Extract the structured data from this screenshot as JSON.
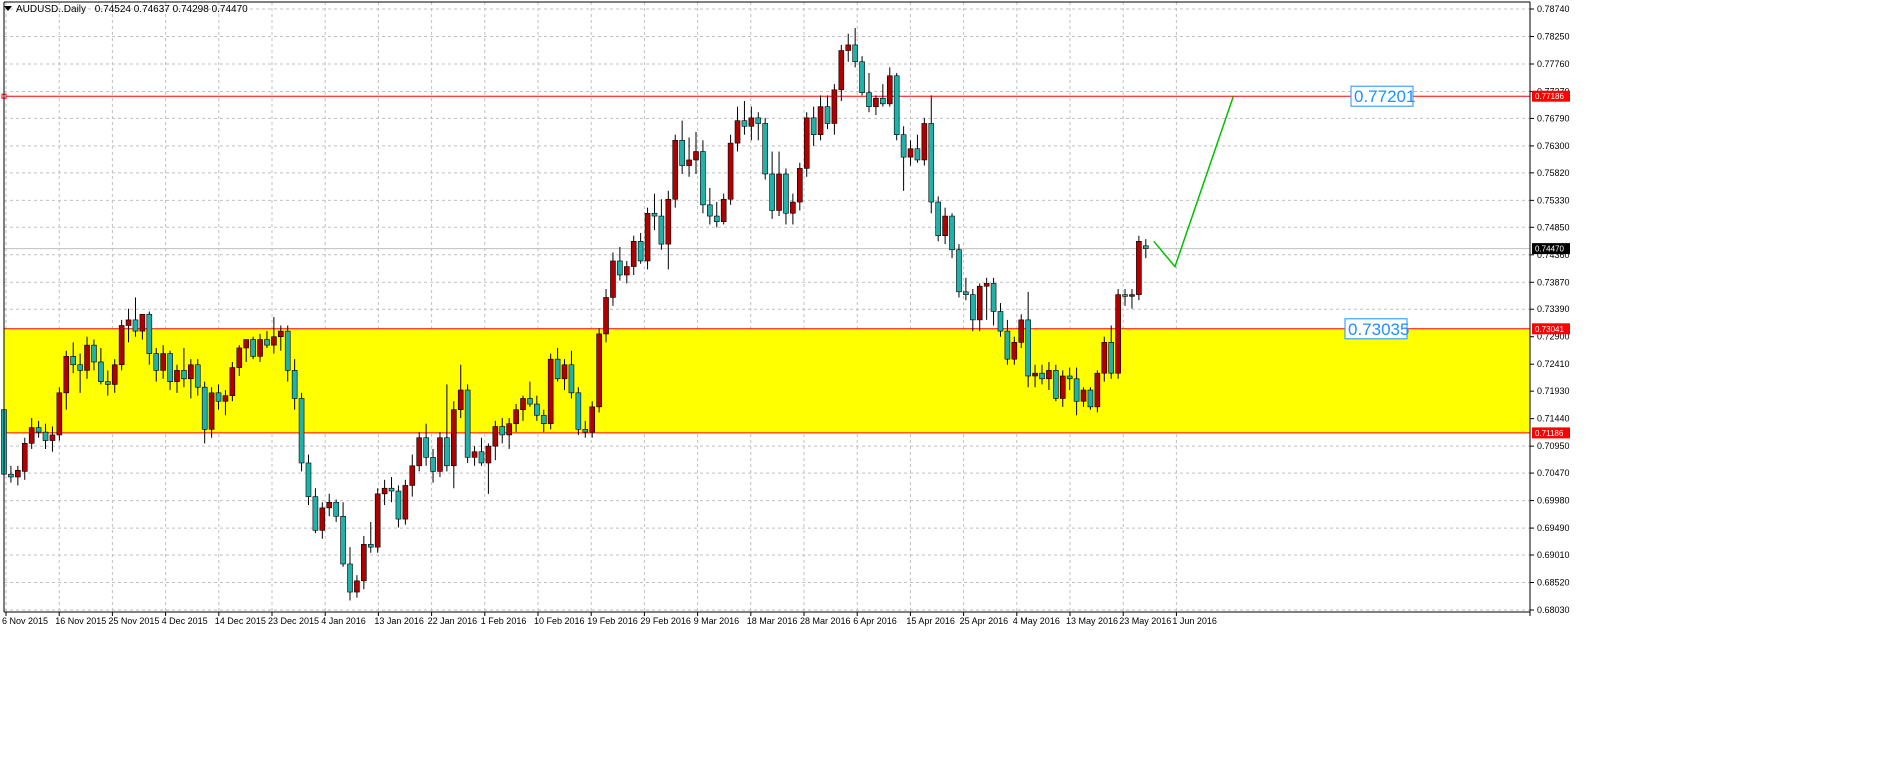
{
  "header": {
    "symbol": "AUDUSD..Daily",
    "ohlc": "0.74524 0.74637 0.74298 0.74470"
  },
  "colors": {
    "bull_body": "#b00000",
    "bear_body": "#20b2aa",
    "wick": "#000000",
    "zone_fill": "#ffff00",
    "level_line": "#ff0000",
    "projection": "#00c000",
    "annotation": "#1e90ff",
    "grid": "#c0c0c0"
  },
  "chart_data": {
    "type": "candlestick",
    "y_axis": {
      "ticks": [
        "0.78740",
        "0.78250",
        "0.77760",
        "0.77270",
        "0.76790",
        "0.76300",
        "0.75820",
        "0.75330",
        "0.74850",
        "0.74360",
        "0.73870",
        "0.73390",
        "0.72900",
        "0.72410",
        "0.71930",
        "0.71440",
        "0.70950",
        "0.70470",
        "0.69980",
        "0.69490",
        "0.69010",
        "0.68520",
        "0.68030"
      ],
      "range": [
        0.6803,
        0.7874
      ]
    },
    "x_axis": {
      "labels": [
        "6 Nov 2015",
        "16 Nov 2015",
        "25 Nov 2015",
        "4 Dec 2015",
        "14 Dec 2015",
        "23 Dec 2015",
        "4 Jan 2016",
        "13 Jan 2016",
        "22 Jan 2016",
        "1 Feb 2016",
        "10 Feb 2016",
        "19 Feb 2016",
        "29 Feb 2016",
        "9 Mar 2016",
        "18 Mar 2016",
        "28 Mar 2016",
        "6 Apr 2016",
        "15 Apr 2016",
        "25 Apr 2016",
        "4 May 2016",
        "13 May 2016",
        "23 May 2016",
        "1 Jun 2016"
      ]
    },
    "candles": [
      [
        0.716,
        0.717,
        0.704,
        0.7045
      ],
      [
        0.7045,
        0.706,
        0.703,
        0.704
      ],
      [
        0.704,
        0.706,
        0.7025,
        0.7052
      ],
      [
        0.705,
        0.711,
        0.7035,
        0.71
      ],
      [
        0.71,
        0.7145,
        0.709,
        0.7128
      ],
      [
        0.7128,
        0.714,
        0.711,
        0.712
      ],
      [
        0.712,
        0.7135,
        0.709,
        0.7105
      ],
      [
        0.7105,
        0.713,
        0.7085,
        0.7115
      ],
      [
        0.7115,
        0.72,
        0.7105,
        0.719
      ],
      [
        0.719,
        0.7265,
        0.716,
        0.7255
      ],
      [
        0.7255,
        0.728,
        0.7225,
        0.724
      ],
      [
        0.724,
        0.726,
        0.719,
        0.723
      ],
      [
        0.723,
        0.729,
        0.7215,
        0.7275
      ],
      [
        0.7275,
        0.7285,
        0.723,
        0.7245
      ],
      [
        0.7245,
        0.727,
        0.7205,
        0.721
      ],
      [
        0.721,
        0.723,
        0.7185,
        0.7205
      ],
      [
        0.7205,
        0.725,
        0.719,
        0.724
      ],
      [
        0.724,
        0.732,
        0.723,
        0.731
      ],
      [
        0.731,
        0.734,
        0.728,
        0.732
      ],
      [
        0.732,
        0.736,
        0.729,
        0.73
      ],
      [
        0.73,
        0.7325,
        0.7285,
        0.733
      ],
      [
        0.733,
        0.7335,
        0.724,
        0.726
      ],
      [
        0.726,
        0.727,
        0.721,
        0.723
      ],
      [
        0.723,
        0.7275,
        0.7215,
        0.726
      ],
      [
        0.726,
        0.7265,
        0.7195,
        0.721
      ],
      [
        0.721,
        0.724,
        0.719,
        0.723
      ],
      [
        0.723,
        0.727,
        0.72,
        0.7215
      ],
      [
        0.7215,
        0.725,
        0.718,
        0.724
      ],
      [
        0.724,
        0.725,
        0.7185,
        0.72
      ],
      [
        0.72,
        0.721,
        0.71,
        0.7125
      ],
      [
        0.7125,
        0.72,
        0.711,
        0.719
      ],
      [
        0.719,
        0.7205,
        0.716,
        0.7175
      ],
      [
        0.7175,
        0.7195,
        0.715,
        0.7185
      ],
      [
        0.7185,
        0.7245,
        0.7175,
        0.7235
      ],
      [
        0.7235,
        0.7275,
        0.722,
        0.727
      ],
      [
        0.727,
        0.728,
        0.7245,
        0.7285
      ],
      [
        0.7285,
        0.729,
        0.725,
        0.7255
      ],
      [
        0.7255,
        0.7295,
        0.7245,
        0.7285
      ],
      [
        0.7285,
        0.73,
        0.727,
        0.7275
      ],
      [
        0.7275,
        0.7325,
        0.726,
        0.729
      ],
      [
        0.729,
        0.731,
        0.7265,
        0.73
      ],
      [
        0.73,
        0.731,
        0.721,
        0.723
      ],
      [
        0.723,
        0.725,
        0.716,
        0.718
      ],
      [
        0.718,
        0.719,
        0.705,
        0.7065
      ],
      [
        0.7065,
        0.708,
        0.699,
        0.7005
      ],
      [
        0.7005,
        0.702,
        0.694,
        0.6945
      ],
      [
        0.6945,
        0.6995,
        0.693,
        0.6985
      ],
      [
        0.6985,
        0.701,
        0.697,
        0.6995
      ],
      [
        0.6995,
        0.7,
        0.696,
        0.697
      ],
      [
        0.697,
        0.6995,
        0.688,
        0.6885
      ],
      [
        0.6885,
        0.6915,
        0.682,
        0.6835
      ],
      [
        0.6835,
        0.6865,
        0.6825,
        0.6855
      ],
      [
        0.6855,
        0.6935,
        0.684,
        0.692
      ],
      [
        0.692,
        0.696,
        0.6905,
        0.6915
      ],
      [
        0.6915,
        0.702,
        0.6905,
        0.701
      ],
      [
        0.701,
        0.7035,
        0.699,
        0.702
      ],
      [
        0.702,
        0.704,
        0.6995,
        0.7015
      ],
      [
        0.7015,
        0.7025,
        0.695,
        0.6965
      ],
      [
        0.6965,
        0.7035,
        0.6955,
        0.7025
      ],
      [
        0.7025,
        0.708,
        0.7005,
        0.706
      ],
      [
        0.706,
        0.712,
        0.705,
        0.711
      ],
      [
        0.711,
        0.7135,
        0.706,
        0.7075
      ],
      [
        0.7075,
        0.709,
        0.703,
        0.705
      ],
      [
        0.705,
        0.712,
        0.704,
        0.711
      ],
      [
        0.711,
        0.7205,
        0.705,
        0.706
      ],
      [
        0.706,
        0.7175,
        0.702,
        0.716
      ],
      [
        0.716,
        0.724,
        0.7145,
        0.7195
      ],
      [
        0.7195,
        0.7205,
        0.7065,
        0.7075
      ],
      [
        0.7075,
        0.7095,
        0.706,
        0.7085
      ],
      [
        0.7085,
        0.711,
        0.706,
        0.7065
      ],
      [
        0.7065,
        0.71,
        0.701,
        0.7095
      ],
      [
        0.7095,
        0.714,
        0.707,
        0.713
      ],
      [
        0.713,
        0.7145,
        0.71,
        0.7115
      ],
      [
        0.7115,
        0.7145,
        0.709,
        0.7135
      ],
      [
        0.7135,
        0.717,
        0.712,
        0.716
      ],
      [
        0.716,
        0.7185,
        0.714,
        0.718
      ],
      [
        0.718,
        0.721,
        0.7165,
        0.717
      ],
      [
        0.717,
        0.7185,
        0.714,
        0.715
      ],
      [
        0.715,
        0.716,
        0.712,
        0.7135
      ],
      [
        0.7135,
        0.726,
        0.7125,
        0.725
      ],
      [
        0.725,
        0.727,
        0.721,
        0.7215
      ],
      [
        0.7215,
        0.725,
        0.7195,
        0.724
      ],
      [
        0.724,
        0.7265,
        0.718,
        0.719
      ],
      [
        0.719,
        0.72,
        0.7115,
        0.7125
      ],
      [
        0.7125,
        0.714,
        0.711,
        0.712
      ],
      [
        0.712,
        0.7175,
        0.711,
        0.7165
      ],
      [
        0.7165,
        0.7305,
        0.7155,
        0.7295
      ],
      [
        0.7295,
        0.7375,
        0.728,
        0.736
      ],
      [
        0.736,
        0.744,
        0.7345,
        0.7425
      ],
      [
        0.7425,
        0.745,
        0.739,
        0.74
      ],
      [
        0.74,
        0.7425,
        0.7385,
        0.7415
      ],
      [
        0.7415,
        0.747,
        0.74,
        0.746
      ],
      [
        0.746,
        0.7475,
        0.742,
        0.7425
      ],
      [
        0.7425,
        0.752,
        0.741,
        0.751
      ],
      [
        0.751,
        0.7545,
        0.748,
        0.7505
      ],
      [
        0.7505,
        0.7535,
        0.7445,
        0.7455
      ],
      [
        0.7455,
        0.755,
        0.741,
        0.7535
      ],
      [
        0.7535,
        0.765,
        0.752,
        0.764
      ],
      [
        0.764,
        0.7675,
        0.758,
        0.7595
      ],
      [
        0.7595,
        0.7645,
        0.7575,
        0.7605
      ],
      [
        0.7605,
        0.7655,
        0.758,
        0.762
      ],
      [
        0.762,
        0.764,
        0.751,
        0.7525
      ],
      [
        0.7525,
        0.7555,
        0.749,
        0.7505
      ],
      [
        0.7505,
        0.753,
        0.7485,
        0.7495
      ],
      [
        0.7495,
        0.7545,
        0.749,
        0.7535
      ],
      [
        0.7535,
        0.765,
        0.7525,
        0.7635
      ],
      [
        0.7635,
        0.77,
        0.762,
        0.7675
      ],
      [
        0.7675,
        0.771,
        0.765,
        0.7665
      ],
      [
        0.7665,
        0.77,
        0.764,
        0.768
      ],
      [
        0.768,
        0.769,
        0.764,
        0.767
      ],
      [
        0.767,
        0.768,
        0.757,
        0.758
      ],
      [
        0.758,
        0.762,
        0.75,
        0.7515
      ],
      [
        0.7515,
        0.762,
        0.7505,
        0.758
      ],
      [
        0.758,
        0.759,
        0.749,
        0.751
      ],
      [
        0.751,
        0.7545,
        0.749,
        0.753
      ],
      [
        0.753,
        0.76,
        0.7515,
        0.759
      ],
      [
        0.759,
        0.769,
        0.7575,
        0.768
      ],
      [
        0.768,
        0.77,
        0.763,
        0.765
      ],
      [
        0.765,
        0.772,
        0.764,
        0.77
      ],
      [
        0.77,
        0.772,
        0.766,
        0.767
      ],
      [
        0.767,
        0.774,
        0.765,
        0.773
      ],
      [
        0.773,
        0.781,
        0.771,
        0.78
      ],
      [
        0.78,
        0.783,
        0.778,
        0.781
      ],
      [
        0.781,
        0.784,
        0.777,
        0.778
      ],
      [
        0.778,
        0.779,
        0.772,
        0.7725
      ],
      [
        0.7725,
        0.776,
        0.769,
        0.77
      ],
      [
        0.77,
        0.772,
        0.7685,
        0.7715
      ],
      [
        0.7715,
        0.774,
        0.77,
        0.7705
      ],
      [
        0.7705,
        0.777,
        0.77,
        0.7755
      ],
      [
        0.7755,
        0.776,
        0.764,
        0.765
      ],
      [
        0.765,
        0.7665,
        0.755,
        0.761
      ],
      [
        0.761,
        0.764,
        0.7595,
        0.7625
      ],
      [
        0.7625,
        0.765,
        0.76,
        0.7605
      ],
      [
        0.7605,
        0.768,
        0.7595,
        0.767
      ],
      [
        0.767,
        0.772,
        0.751,
        0.753
      ],
      [
        0.753,
        0.754,
        0.746,
        0.747
      ],
      [
        0.747,
        0.752,
        0.7455,
        0.7505
      ],
      [
        0.7505,
        0.751,
        0.743,
        0.7445
      ],
      [
        0.7445,
        0.7455,
        0.736,
        0.737
      ],
      [
        0.737,
        0.7395,
        0.7355,
        0.7365
      ],
      [
        0.7365,
        0.7375,
        0.73,
        0.732
      ],
      [
        0.732,
        0.7385,
        0.73,
        0.738
      ],
      [
        0.738,
        0.7395,
        0.732,
        0.7385
      ],
      [
        0.7385,
        0.7395,
        0.731,
        0.7335
      ],
      [
        0.7335,
        0.735,
        0.729,
        0.73
      ],
      [
        0.73,
        0.732,
        0.724,
        0.725
      ],
      [
        0.725,
        0.729,
        0.724,
        0.728
      ],
      [
        0.728,
        0.733,
        0.727,
        0.732
      ],
      [
        0.732,
        0.737,
        0.72,
        0.722
      ],
      [
        0.722,
        0.724,
        0.72,
        0.7225
      ],
      [
        0.7225,
        0.724,
        0.7205,
        0.7215
      ],
      [
        0.7215,
        0.7245,
        0.7195,
        0.723
      ],
      [
        0.723,
        0.724,
        0.7175,
        0.718
      ],
      [
        0.718,
        0.723,
        0.7165,
        0.722
      ],
      [
        0.722,
        0.7235,
        0.7195,
        0.7215
      ],
      [
        0.7215,
        0.7235,
        0.715,
        0.7175
      ],
      [
        0.7175,
        0.72,
        0.7165,
        0.7195
      ],
      [
        0.7195,
        0.72,
        0.716,
        0.7165
      ],
      [
        0.7165,
        0.723,
        0.7155,
        0.7225
      ],
      [
        0.7225,
        0.729,
        0.721,
        0.728
      ],
      [
        0.728,
        0.731,
        0.7215,
        0.7225
      ],
      [
        0.7225,
        0.7375,
        0.7215,
        0.7365
      ],
      [
        0.7365,
        0.7375,
        0.7345,
        0.7362
      ],
      [
        0.7362,
        0.7375,
        0.734,
        0.7365
      ],
      [
        0.7365,
        0.747,
        0.7355,
        0.746
      ],
      [
        0.7452,
        0.7464,
        0.743,
        0.7447
      ]
    ],
    "levels": [
      {
        "price": 0.77186,
        "tag": "0.77186"
      },
      {
        "price": 0.73041,
        "tag": "0.73041"
      },
      {
        "price": 0.71186,
        "tag": "0.71186"
      }
    ],
    "current_price": {
      "price": 0.7447,
      "tag": "0.74470"
    },
    "annotations": {
      "upper": "0.77201",
      "lower": "0.73035"
    },
    "projection": [
      [
        0.746,
        0
      ],
      [
        0.7415,
        4
      ],
      [
        0.7718,
        15
      ]
    ]
  }
}
